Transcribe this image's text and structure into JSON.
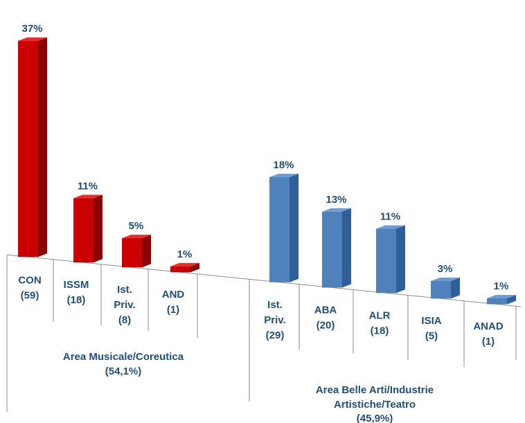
{
  "chart_data": {
    "type": "bar",
    "title": "",
    "xlabel": "",
    "ylabel": "",
    "ylim": [
      0,
      37
    ],
    "grid": false,
    "legend": "none",
    "groups": [
      {
        "name": "Area Musicale/Coreutica",
        "share": "(54,1%)",
        "color": "#cc0000",
        "bars": [
          {
            "label": [
              "CON",
              "(59)"
            ],
            "value": 37,
            "value_label": "37%"
          },
          {
            "label": [
              "ISSM",
              "(18)"
            ],
            "value": 11,
            "value_label": "11%"
          },
          {
            "label": [
              "Ist.",
              "Priv.",
              "(8)"
            ],
            "value": 5,
            "value_label": "5%"
          },
          {
            "label": [
              "AND",
              "(1)"
            ],
            "value": 1,
            "value_label": "1%"
          }
        ]
      },
      {
        "name": "Area Belle Arti/Industrie Artistiche/Teatro",
        "name_lines": [
          "Area Belle Arti/Industrie",
          "Artistiche/Teatro"
        ],
        "share": "(45,9%)",
        "color": "#4f81bd",
        "bars": [
          {
            "label": [
              "Ist.",
              "Priv.",
              "(29)"
            ],
            "value": 18,
            "value_label": "18%"
          },
          {
            "label": [
              "ABA",
              "(20)"
            ],
            "value": 13,
            "value_label": "13%"
          },
          {
            "label": [
              "ALR",
              "(18)"
            ],
            "value": 11,
            "value_label": "11%"
          },
          {
            "label": [
              "ISIA",
              "(5)"
            ],
            "value": 3,
            "value_label": "3%"
          },
          {
            "label": [
              "ANAD",
              "(1)"
            ],
            "value": 1,
            "value_label": "1%"
          }
        ]
      }
    ]
  },
  "colors": {
    "label_text": "#1f4e79",
    "axis": "#8c8c8c",
    "red_front": "#cc0000",
    "red_side": "#8b0000",
    "red_top": "#e03030",
    "blue_front": "#4f81bd",
    "blue_side": "#2f5f98",
    "blue_top": "#6f9bd1"
  }
}
